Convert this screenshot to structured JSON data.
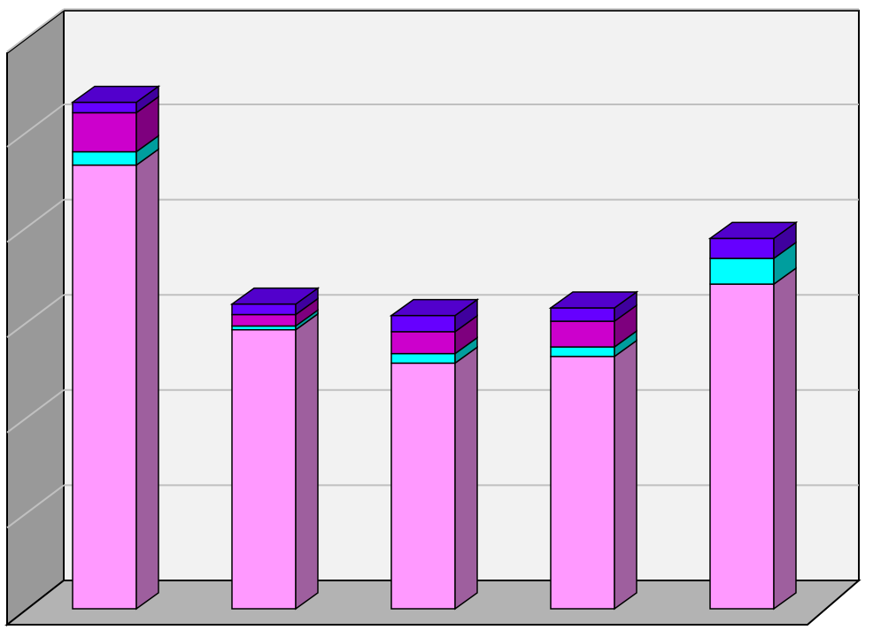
{
  "colors": {
    "back_wall": "#f2f2f2",
    "side_wall": "#999999",
    "floor": "#b3b3b3",
    "gridline": "#c0c0c0",
    "edge": "#000000"
  },
  "chart_data": {
    "type": "bar",
    "stacked": true,
    "three_d": true,
    "title": "",
    "xlabel": "",
    "ylabel": "",
    "categories": [
      "",
      "",
      "",
      "",
      ""
    ],
    "ylim": [
      0,
      6
    ],
    "grid": true,
    "legend": "none",
    "series": [
      {
        "color": "#ff99ff",
        "values": [
          4.66,
          2.93,
          2.58,
          2.65,
          3.41
        ]
      },
      {
        "color": "#00ffff",
        "values": [
          0.14,
          0.04,
          0.1,
          0.1,
          0.27
        ]
      },
      {
        "color": "#cc00cc",
        "values": [
          0.41,
          0.12,
          0.23,
          0.27,
          0.0
        ]
      },
      {
        "color": "#6600ff",
        "values": [
          0.11,
          0.11,
          0.17,
          0.14,
          0.21
        ]
      }
    ]
  }
}
